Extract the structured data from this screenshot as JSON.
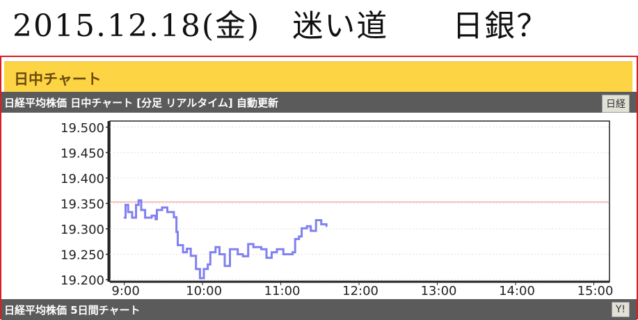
{
  "handwritten_note": "2015.12.18(金)　迷い道　　日銀？",
  "panel": {
    "header_title": "日中チャート",
    "chart_bar_title": "日経平均株価 日中チャート [分足 リアルタイム] 自動更新",
    "chart_bar_button": "日経",
    "bottom_bar_title": "日経平均株価 5日間チャート",
    "bottom_bar_button": "Y!"
  },
  "chart_data": {
    "type": "line",
    "title": "",
    "xlabel": "",
    "ylabel": "",
    "x_ticks": [
      "9:00",
      "10:00",
      "11:00",
      "12:00",
      "13:00",
      "14:00",
      "15:00"
    ],
    "y_ticks": [
      19500,
      19450,
      19400,
      19350,
      19300,
      19250,
      19200
    ],
    "y_tick_labels": [
      "19.500",
      "19.450",
      "19.400",
      "19.350",
      "19.300",
      "19.250",
      "19.200"
    ],
    "ylim": [
      19196,
      19512
    ],
    "xlim": [
      "8:49",
      "15:12"
    ],
    "grid": "horizontal dotted",
    "reference_line": {
      "value": 19353,
      "color": "#f08080"
    },
    "series_color": "#8080f0",
    "series": [
      {
        "x": [
          "9:00",
          "9:01",
          "9:03",
          "9:06",
          "9:09",
          "9:11",
          "9:13",
          "9:16",
          "9:21",
          "9:24",
          "9:25",
          "9:29",
          "9:33",
          "9:38",
          "9:40",
          "9:41",
          "9:45",
          "9:48",
          "9:51",
          "9:55",
          "9:58",
          "10:01",
          "10:04",
          "10:06",
          "10:10",
          "10:13",
          "10:17",
          "10:21",
          "10:27",
          "10:31",
          "10:35",
          "10:39",
          "10:45",
          "10:49",
          "10:53",
          "10:57",
          "11:02",
          "11:06",
          "11:09",
          "11:11",
          "11:14",
          "11:16",
          "11:20",
          "11:23",
          "11:27",
          "11:31",
          "11:35"
        ],
        "y": [
          19322,
          19347,
          19333,
          19322,
          19347,
          19356,
          19337,
          19322,
          19326,
          19319,
          19337,
          19342,
          19333,
          19323,
          19294,
          19268,
          19254,
          19261,
          19247,
          19221,
          19203,
          19221,
          19230,
          19254,
          19264,
          19250,
          19227,
          19260,
          19250,
          19246,
          19270,
          19264,
          19260,
          19243,
          19254,
          19260,
          19250,
          19250,
          19254,
          19280,
          19285,
          19301,
          19305,
          19296,
          19317,
          19309,
          19305
        ]
      }
    ]
  }
}
